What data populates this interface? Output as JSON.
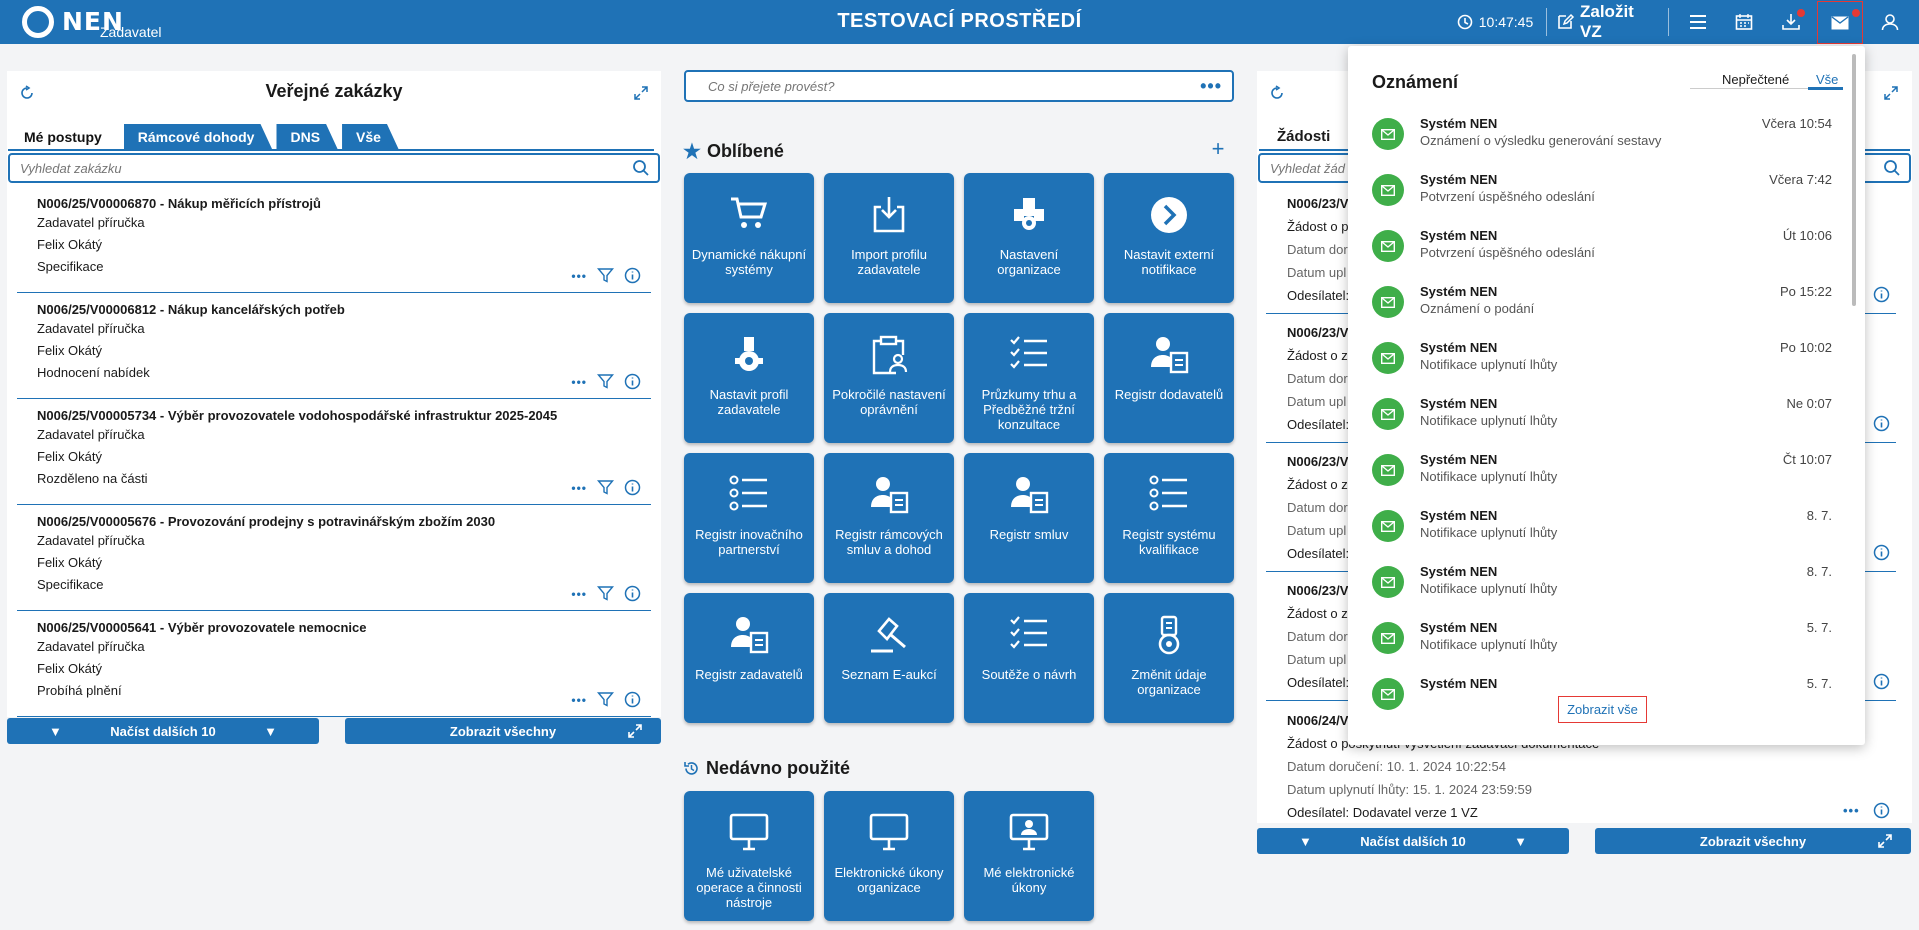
{
  "header": {
    "logo": "NEN",
    "logo_sub": "Zadavatel",
    "title": "TESTOVACÍ PROSTŘEDÍ",
    "time": "10:47:45",
    "create_label": "Založit VZ",
    "icons": [
      "clock-icon",
      "edit-icon",
      "menu-icon",
      "calendar-icon",
      "download-icon",
      "mail-icon",
      "user-icon"
    ]
  },
  "left": {
    "title": "Veřejné zakázky",
    "tabs": [
      "Mé postupy",
      "Rámcové dohody",
      "DNS",
      "Vše"
    ],
    "search_placeholder": "Vyhledat zakázku",
    "items": [
      {
        "title": "N006/25/V00006870 - Nákup měřicích přístrojů",
        "lines": [
          "Zadavatel příručka",
          "Felix Okátý",
          "Specifikace"
        ]
      },
      {
        "title": "N006/25/V00006812 - Nákup kancelářských potřeb",
        "lines": [
          "Zadavatel příručka",
          "Felix Okátý",
          "Hodnocení nabídek"
        ]
      },
      {
        "title": "N006/25/V00005734 - Výběr provozovatele vodohospodářské infrastruktur 2025-2045",
        "lines": [
          "Zadavatel příručka",
          "Felix Okátý",
          "Rozděleno na části"
        ]
      },
      {
        "title": "N006/25/V00005676 - Provozování prodejny s potravinářským zbožím 2030",
        "lines": [
          "Zadavatel příručka",
          "Felix Okátý",
          "Specifikace"
        ]
      },
      {
        "title": "N006/25/V00005641 - Výběr provozovatele nemocnice",
        "lines": [
          "Zadavatel příručka",
          "Felix Okátý",
          "Probíhá plnění"
        ]
      }
    ],
    "load_more": "Načíst dalších 10",
    "show_all": "Zobrazit všechny"
  },
  "center": {
    "search_placeholder": "Co si přejete provést?",
    "favorites_title": "Oblíbené",
    "tiles": [
      "Dynamické nákupní systémy",
      "Import profilu zadavatele",
      "Nastavení organizace",
      "Nastavit externí notifikace",
      "Nastavit profil zadavatele",
      "Pokročilé nastavení oprávnění",
      "Průzkumy trhu a Předběžné tržní konzultace",
      "Registr dodavatelů",
      "Registr inovačního partnerství",
      "Registr rámcových smluv a dohod",
      "Registr smluv",
      "Registr systému kvalifikace",
      "Registr zadavatelů",
      "Seznam E-aukcí",
      "Soutěže o návrh",
      "Změnit údaje organizace"
    ],
    "recent_title": "Nedávno použité",
    "recent_tiles": [
      "Mé uživatelské operace a činnosti nástroje",
      "Elektronické úkony organizace",
      "Mé elektronické úkony"
    ]
  },
  "right": {
    "tab_label": "Žádosti",
    "search_placeholder": "Vyhledat žád",
    "items": [
      {
        "title": "N006/23/V",
        "lines": [
          "Žádost o p",
          "Datum dor",
          "Datum upl",
          "Odesílatel:"
        ]
      },
      {
        "title": "N006/23/V",
        "lines": [
          "Žádost o z",
          "Datum dor",
          "Datum upl",
          "Odesílatel:"
        ]
      },
      {
        "title": "N006/23/V",
        "lines": [
          "Žádost o z",
          "Datum dor",
          "Datum upl",
          "Odesílatel:"
        ]
      },
      {
        "title": "N006/23/V",
        "lines": [
          "Žádost o z",
          "Datum dor",
          "Datum upl",
          "Odesílatel:"
        ]
      }
    ],
    "last_item": {
      "title": "N006/24/V",
      "line1": "Žádost o poskytnutí vysvětlení zadávací dokumentace",
      "line2": "Datum doručení: 10. 1. 2024 10:22:54",
      "line3": "Datum uplynutí lhůty: 15. 1. 2024 23:59:59",
      "line4": "Odesílatel: Dodavatel verze 1 VZ"
    },
    "load_more": "Načíst dalších 10",
    "show_all": "Zobrazit všechny"
  },
  "notifications": {
    "title": "Oznámení",
    "tab_unread": "Nepřečtené",
    "tab_all": "Vše",
    "items": [
      {
        "sender": "Systém NEN",
        "message": "Oznámení o výsledku generování sestavy",
        "time": "Včera 10:54"
      },
      {
        "sender": "Systém NEN",
        "message": "Potvrzení úspěšného odeslání",
        "time": "Včera 7:42"
      },
      {
        "sender": "Systém NEN",
        "message": "Potvrzení úspěšného odeslání",
        "time": "Út 10:06"
      },
      {
        "sender": "Systém NEN",
        "message": "Oznámení o podání",
        "time": "Po 15:22"
      },
      {
        "sender": "Systém NEN",
        "message": "Notifikace uplynutí lhůty",
        "time": "Po 10:02"
      },
      {
        "sender": "Systém NEN",
        "message": "Notifikace uplynutí lhůty",
        "time": "Ne 0:07"
      },
      {
        "sender": "Systém NEN",
        "message": "Notifikace uplynutí lhůty",
        "time": "Čt 10:07"
      },
      {
        "sender": "Systém NEN",
        "message": "Notifikace uplynutí lhůty",
        "time": "8. 7."
      },
      {
        "sender": "Systém NEN",
        "message": "Notifikace uplynutí lhůty",
        "time": "8. 7."
      },
      {
        "sender": "Systém NEN",
        "message": "Notifikace uplynutí lhůty",
        "time": "5. 7."
      },
      {
        "sender": "Systém NEN",
        "message": "",
        "time": "5. 7."
      }
    ],
    "show_all": "Zobrazit vše"
  },
  "colors": {
    "primary": "#1f72b6",
    "success": "#3fae49",
    "alert": "#e53935"
  }
}
